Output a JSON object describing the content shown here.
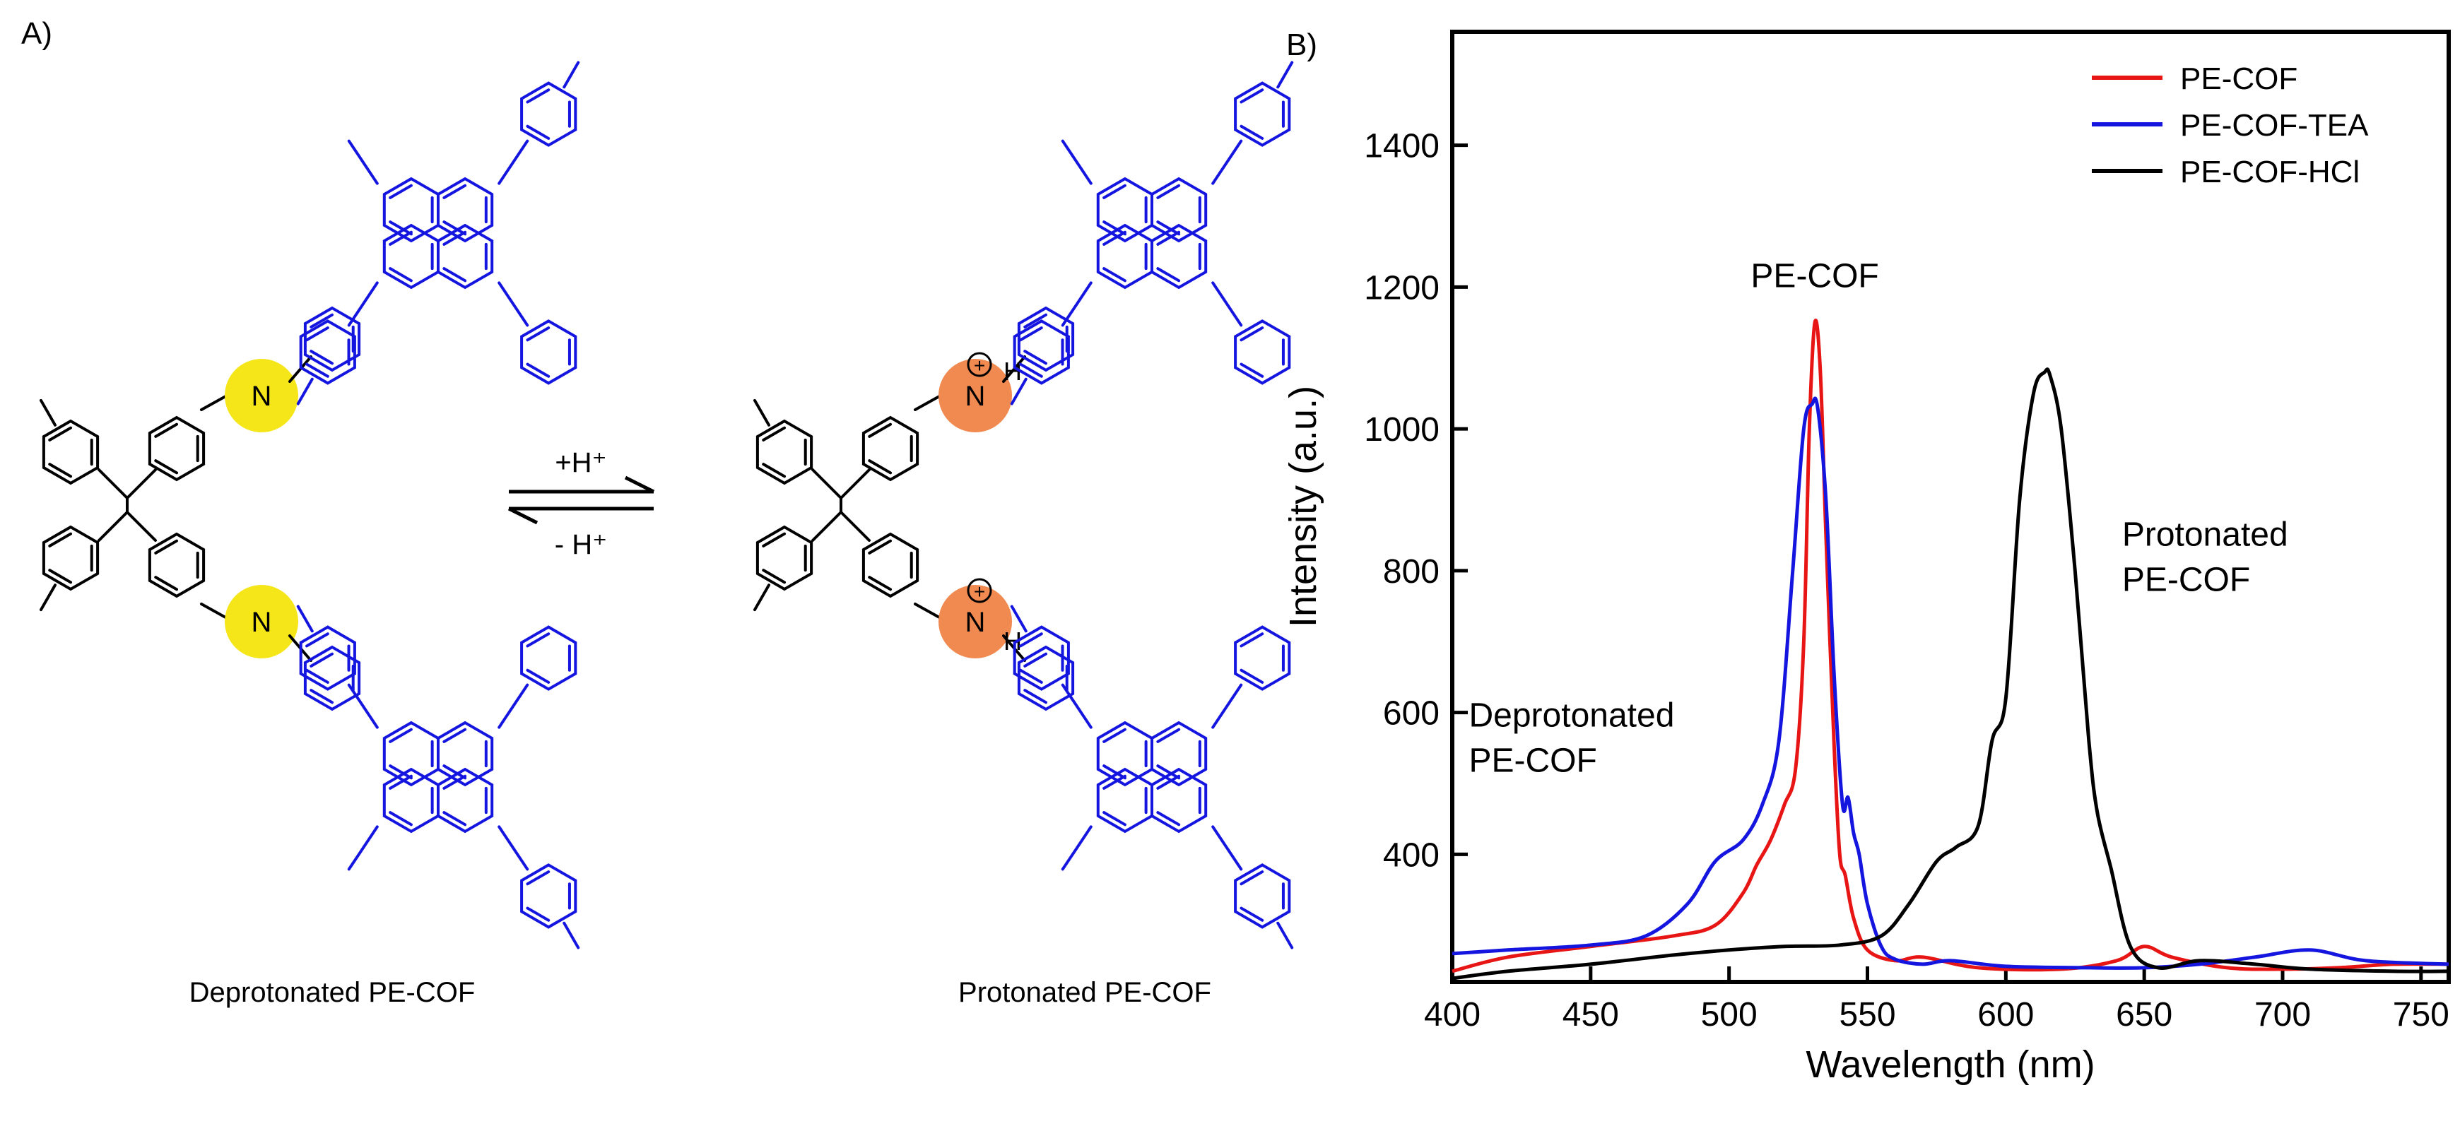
{
  "panel_a": {
    "label": "A)",
    "arrow_forward_label": "+H⁺",
    "arrow_reverse_label": "- H⁺",
    "left_caption": "Deprotonated PE-COF",
    "right_caption": "Protonated PE-COF",
    "atoms": {
      "nitrogen": "N",
      "hydrogen": "H",
      "plus": "+"
    },
    "colors": {
      "core": "#000000",
      "pyrene": "#1515e0",
      "imine_neutral": "#f5e61a",
      "imine_protonated": "#f08a50"
    }
  },
  "panel_b": {
    "label": "B)"
  },
  "chart_data": {
    "type": "line",
    "xlabel": "Wavelength (nm)",
    "ylabel": "Intensity (a.u.)",
    "xlim": [
      400,
      760
    ],
    "ylim": [
      220,
      1560
    ],
    "xticks": [
      400,
      450,
      500,
      550,
      600,
      650,
      700,
      750
    ],
    "yticks": [
      400,
      600,
      800,
      1000,
      1200,
      1400
    ],
    "grid": false,
    "legend_position": "top-right",
    "annotations": [
      {
        "lines": [
          "PE-COF"
        ],
        "x": 531,
        "y": 1200
      },
      {
        "lines": [
          "Protonated",
          "PE-COF"
        ],
        "x": 642,
        "y": 835
      },
      {
        "lines": [
          "Deprotonated",
          "PE-COF"
        ],
        "x": 406,
        "y": 580
      }
    ],
    "series": [
      {
        "name": "PE-COF",
        "color": "#e81515",
        "x": [
          400,
          420,
          450,
          480,
          495,
          505,
          510,
          515,
          520,
          524,
          527,
          529,
          531,
          533,
          535,
          538,
          540,
          542,
          545,
          550,
          560,
          570,
          590,
          620,
          640,
          650,
          660,
          680,
          700,
          720,
          740,
          760
        ],
        "y": [
          235,
          255,
          270,
          285,
          300,
          345,
          385,
          420,
          470,
          520,
          700,
          1000,
          1150,
          1080,
          850,
          550,
          400,
          370,
          310,
          265,
          250,
          255,
          240,
          238,
          250,
          270,
          255,
          240,
          238,
          240,
          245,
          245
        ]
      },
      {
        "name": "PE-COF-TEA",
        "color": "#1515e0",
        "x": [
          400,
          420,
          450,
          470,
          485,
          495,
          505,
          512,
          518,
          523,
          527,
          530,
          532,
          535,
          538,
          541,
          543,
          545,
          547,
          550,
          555,
          560,
          570,
          580,
          600,
          630,
          650,
          670,
          690,
          710,
          730,
          760
        ],
        "y": [
          260,
          265,
          272,
          285,
          330,
          390,
          420,
          470,
          560,
          800,
          1000,
          1035,
          1030,
          900,
          650,
          470,
          480,
          430,
          400,
          330,
          270,
          252,
          245,
          250,
          242,
          240,
          240,
          245,
          255,
          265,
          250,
          245
        ]
      },
      {
        "name": "PE-COF-HCl",
        "color": "#000000",
        "x": [
          400,
          420,
          450,
          480,
          500,
          520,
          540,
          555,
          565,
          575,
          582,
          590,
          595,
          600,
          605,
          610,
          614,
          616,
          620,
          625,
          630,
          633,
          638,
          645,
          655,
          670,
          690,
          710,
          740,
          760
        ],
        "y": [
          225,
          235,
          245,
          258,
          265,
          270,
          272,
          285,
          330,
          390,
          410,
          440,
          560,
          620,
          900,
          1050,
          1080,
          1075,
          1000,
          800,
          560,
          460,
          380,
          270,
          240,
          250,
          245,
          238,
          235,
          235
        ]
      }
    ]
  }
}
